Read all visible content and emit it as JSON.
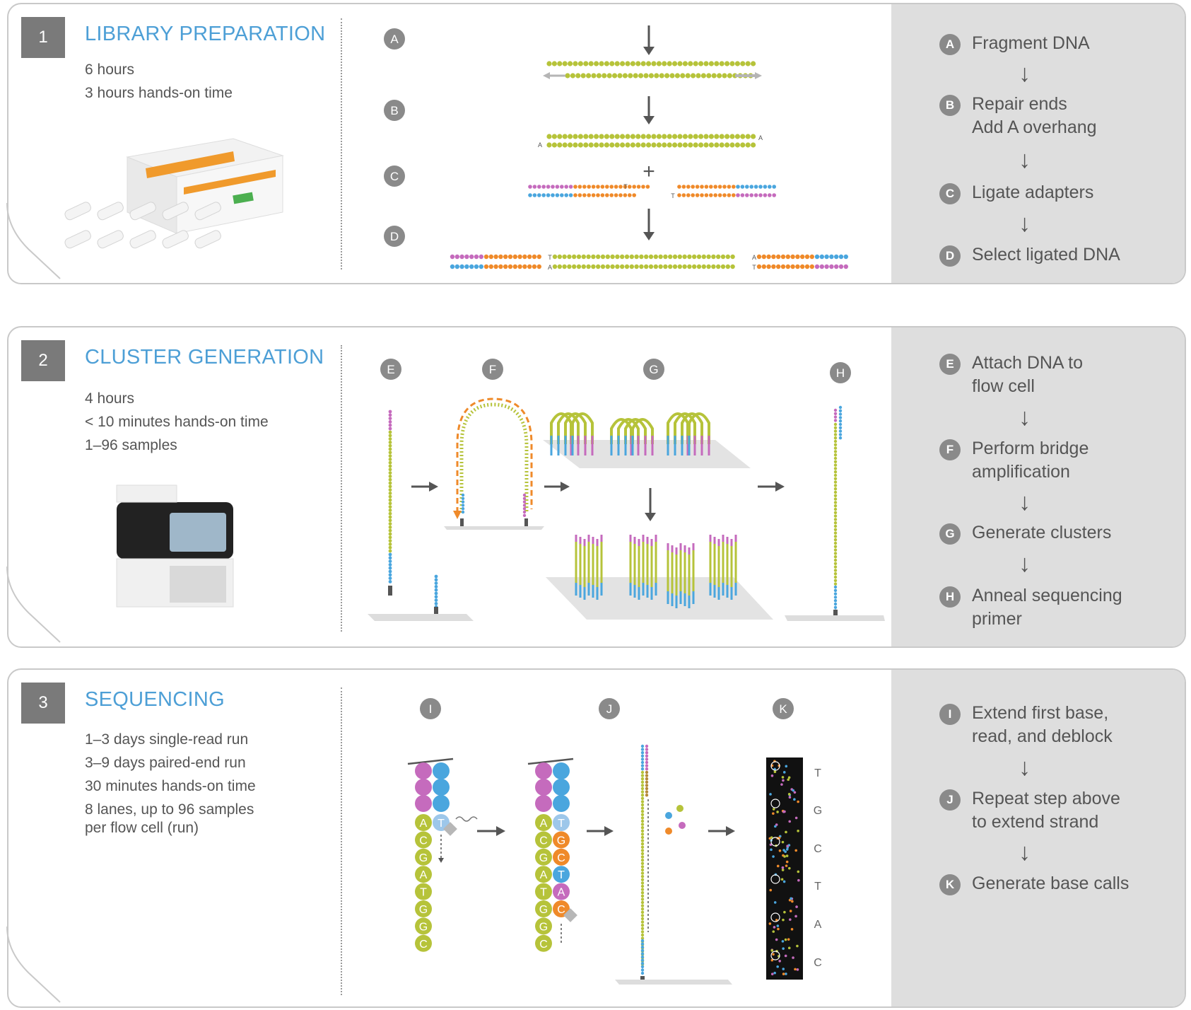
{
  "panels": [
    {
      "number": "1",
      "title": "LIBRARY PREPARATION",
      "info": [
        "6 hours",
        "3 hours hands-on time"
      ],
      "steps": [
        {
          "letter": "A",
          "label": "Fragment DNA"
        },
        {
          "letter": "B",
          "label": "Repair ends\nAdd A overhang"
        },
        {
          "letter": "C",
          "label": "Ligate adapters"
        },
        {
          "letter": "D",
          "label": "Select ligated DNA"
        }
      ]
    },
    {
      "number": "2",
      "title": "CLUSTER GENERATION",
      "info": [
        "4 hours",
        "< 10 minutes hands-on time",
        "1–96 samples"
      ],
      "steps": [
        {
          "letter": "E",
          "label": "Attach DNA to\nflow cell"
        },
        {
          "letter": "F",
          "label": "Perform bridge\namplification"
        },
        {
          "letter": "G",
          "label": "Generate clusters"
        },
        {
          "letter": "H",
          "label": "Anneal sequencing\nprimer"
        }
      ]
    },
    {
      "number": "3",
      "title": "SEQUENCING",
      "info": [
        "1–3 days single-read run",
        "3–9 days paired-end run",
        "30 minutes hands-on time",
        "8 lanes, up to 96 samples",
        "per flow cell (run)"
      ],
      "steps": [
        {
          "letter": "I",
          "label": "Extend first base,\nread, and deblock"
        },
        {
          "letter": "J",
          "label": "Repeat step above\nto extend strand"
        },
        {
          "letter": "K",
          "label": "Generate base calls"
        }
      ]
    }
  ],
  "diagram_labels": {
    "overhang_A": "A",
    "overhang_T": "T",
    "plus": "+",
    "strand_I": [
      "A",
      "C",
      "G",
      "A",
      "T",
      "G",
      "G",
      "C"
    ],
    "strand_I_pair": "T",
    "strand_J": [
      "A",
      "C",
      "G",
      "A",
      "T",
      "G",
      "G",
      "C"
    ],
    "strand_J_pair": [
      "T",
      "G",
      "C",
      "T",
      "A",
      "C"
    ],
    "base_calls": [
      "T",
      "G",
      "C",
      "T",
      "A",
      "C"
    ]
  },
  "colors": {
    "title_blue": "#4d9fd6",
    "dna_green": "#b6c33a",
    "adapter_orange": "#ef8a2a",
    "adapter_blue": "#4aa6de",
    "adapter_pink": "#c56bbd",
    "step_panel_gray": "#dedede"
  }
}
